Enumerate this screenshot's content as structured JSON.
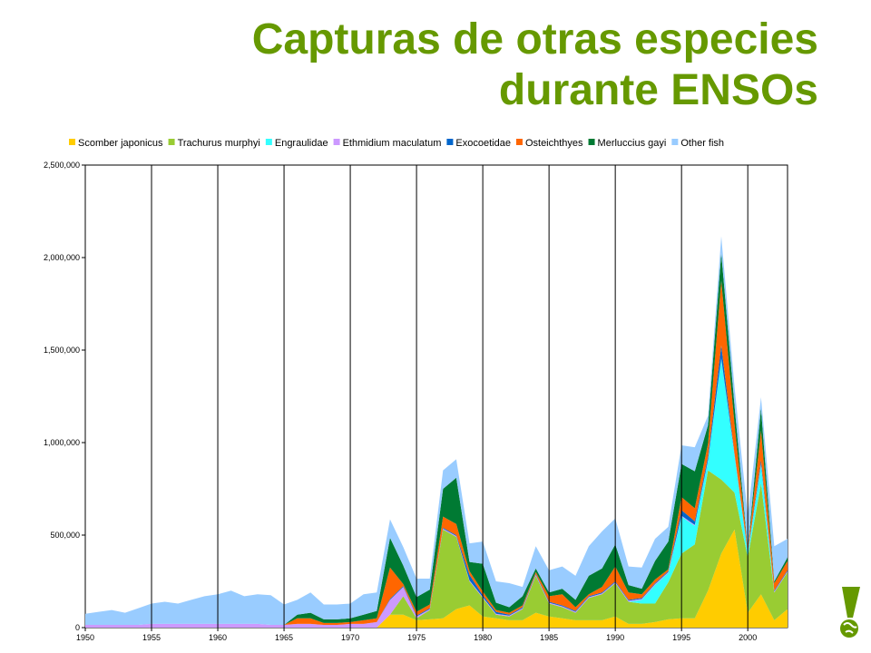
{
  "title": {
    "line1": "Capturas de otras especies",
    "line2": "durante ENSOs"
  },
  "colors": {
    "title": "#669900",
    "logo": "#669900"
  },
  "icons": {
    "logo": "exclamation-globe-icon"
  },
  "chart_data": {
    "type": "area",
    "stacked": true,
    "title": "Capturas de otras especies durante ENSOs",
    "xlabel": "",
    "ylabel": "",
    "xlim": [
      1950,
      2003
    ],
    "ylim": [
      0,
      2500000
    ],
    "grid": "vertical",
    "legend_position": "top",
    "x_ticks": [
      "1950",
      "1955",
      "1960",
      "1965",
      "1970",
      "1975",
      "1980",
      "1985",
      "1990",
      "1995",
      "2000"
    ],
    "y_ticks": [
      "0",
      "500,000",
      "1,000,000",
      "1,500,000",
      "2,000,000",
      "2,500,000"
    ],
    "x": [
      1950,
      1951,
      1952,
      1953,
      1954,
      1955,
      1956,
      1957,
      1958,
      1959,
      1960,
      1961,
      1962,
      1963,
      1964,
      1965,
      1966,
      1967,
      1968,
      1969,
      1970,
      1971,
      1972,
      1973,
      1974,
      1975,
      1976,
      1977,
      1978,
      1979,
      1980,
      1981,
      1982,
      1983,
      1984,
      1985,
      1986,
      1987,
      1988,
      1989,
      1990,
      1991,
      1992,
      1993,
      1994,
      1995,
      1996,
      1997,
      1998,
      1999,
      2000,
      2001,
      2002,
      2003
    ],
    "series": [
      {
        "name": "Scomber japonicus",
        "color": "#ffcc00",
        "values": [
          0,
          0,
          0,
          0,
          0,
          0,
          0,
          0,
          0,
          0,
          0,
          0,
          0,
          0,
          0,
          0,
          0,
          0,
          0,
          0,
          0,
          0,
          0,
          70000,
          70000,
          40000,
          45000,
          50000,
          100000,
          120000,
          60000,
          50000,
          40000,
          40000,
          80000,
          60000,
          50000,
          40000,
          40000,
          40000,
          60000,
          20000,
          20000,
          30000,
          45000,
          50000,
          50000,
          200000,
          400000,
          530000,
          80000,
          180000,
          40000,
          100000
        ]
      },
      {
        "name": "Trachurus murphyi",
        "color": "#99cc33",
        "values": [
          0,
          0,
          0,
          0,
          0,
          0,
          0,
          0,
          0,
          0,
          0,
          0,
          0,
          0,
          0,
          0,
          0,
          0,
          0,
          0,
          0,
          0,
          0,
          0,
          100000,
          10000,
          50000,
          480000,
          390000,
          130000,
          100000,
          20000,
          20000,
          60000,
          200000,
          70000,
          60000,
          40000,
          120000,
          140000,
          180000,
          120000,
          110000,
          100000,
          200000,
          350000,
          400000,
          650000,
          400000,
          200000,
          300000,
          600000,
          150000,
          200000
        ]
      },
      {
        "name": "Engraulidae",
        "color": "#33ffff",
        "values": [
          0,
          0,
          0,
          0,
          0,
          0,
          0,
          0,
          0,
          0,
          0,
          0,
          0,
          0,
          0,
          0,
          0,
          0,
          0,
          0,
          0,
          0,
          0,
          0,
          0,
          0,
          0,
          0,
          0,
          0,
          0,
          0,
          0,
          0,
          0,
          0,
          0,
          0,
          0,
          0,
          0,
          0,
          20000,
          100000,
          50000,
          200000,
          100000,
          50000,
          650000,
          200000,
          20000,
          100000,
          0,
          0
        ]
      },
      {
        "name": "Ethmidium maculatum",
        "color": "#cc99ff",
        "values": [
          15000,
          15000,
          15000,
          15000,
          15000,
          20000,
          20000,
          20000,
          20000,
          20000,
          20000,
          20000,
          20000,
          20000,
          15000,
          15000,
          20000,
          20000,
          15000,
          15000,
          20000,
          20000,
          30000,
          80000,
          50000,
          10000,
          5000,
          5000,
          5000,
          5000,
          5000,
          5000,
          5000,
          5000,
          5000,
          5000,
          5000,
          5000,
          5000,
          5000,
          5000,
          5000,
          5000,
          5000,
          5000,
          5000,
          5000,
          5000,
          5000,
          5000,
          5000,
          5000,
          5000,
          5000
        ]
      },
      {
        "name": "Exocoetidae",
        "color": "#0066cc",
        "values": [
          0,
          0,
          0,
          0,
          0,
          0,
          0,
          0,
          0,
          0,
          0,
          0,
          0,
          0,
          0,
          0,
          0,
          0,
          0,
          0,
          0,
          0,
          0,
          5000,
          5000,
          5000,
          5000,
          5000,
          5000,
          30000,
          10000,
          10000,
          5000,
          5000,
          5000,
          5000,
          5000,
          5000,
          5000,
          5000,
          5000,
          5000,
          5000,
          5000,
          5000,
          30000,
          20000,
          20000,
          70000,
          5000,
          5000,
          20000,
          5000,
          5000
        ]
      },
      {
        "name": "Osteichthyes",
        "color": "#ff6600",
        "values": [
          0,
          0,
          0,
          0,
          0,
          0,
          0,
          0,
          0,
          0,
          0,
          0,
          0,
          0,
          0,
          0,
          30000,
          30000,
          10000,
          10000,
          10000,
          20000,
          20000,
          170000,
          10000,
          20000,
          20000,
          60000,
          60000,
          20000,
          20000,
          10000,
          10000,
          10000,
          10000,
          30000,
          60000,
          20000,
          10000,
          30000,
          80000,
          40000,
          20000,
          20000,
          10000,
          70000,
          70000,
          70000,
          350000,
          160000,
          10000,
          160000,
          40000,
          50000
        ]
      },
      {
        "name": "Merluccius gayi",
        "color": "#007a33",
        "values": [
          0,
          0,
          0,
          0,
          0,
          0,
          0,
          0,
          0,
          0,
          0,
          0,
          0,
          0,
          0,
          0,
          20000,
          30000,
          20000,
          20000,
          20000,
          30000,
          40000,
          160000,
          100000,
          80000,
          80000,
          150000,
          250000,
          50000,
          150000,
          40000,
          30000,
          50000,
          20000,
          20000,
          30000,
          40000,
          100000,
          100000,
          120000,
          40000,
          30000,
          100000,
          150000,
          180000,
          200000,
          100000,
          150000,
          100000,
          5000,
          120000,
          10000,
          20000
        ]
      },
      {
        "name": "Other fish",
        "color": "#99ccff",
        "values": [
          60000,
          70000,
          80000,
          65000,
          90000,
          110000,
          120000,
          110000,
          130000,
          150000,
          160000,
          180000,
          150000,
          160000,
          160000,
          110000,
          80000,
          110000,
          80000,
          80000,
          80000,
          110000,
          100000,
          100000,
          100000,
          100000,
          60000,
          100000,
          100000,
          100000,
          120000,
          115000,
          130000,
          50000,
          120000,
          120000,
          120000,
          130000,
          160000,
          200000,
          140000,
          100000,
          115000,
          120000,
          80000,
          100000,
          130000,
          50000,
          90000,
          100000,
          180000,
          60000,
          190000,
          100000
        ]
      }
    ]
  }
}
